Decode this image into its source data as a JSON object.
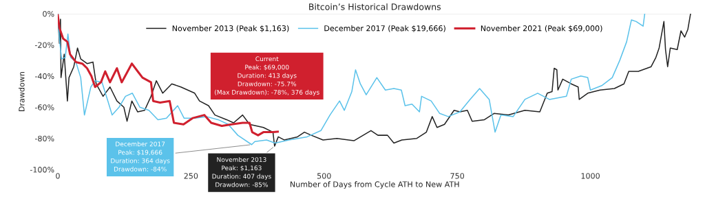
{
  "chart_data": {
    "type": "line",
    "title": "Bitcoin’s Historical Drawdowns",
    "xlabel": "Number of Days from Cycle ATH to New ATH",
    "ylabel": "Drawdown",
    "xlim": [
      0,
      1190
    ],
    "xticks": [
      0,
      250,
      500,
      750,
      1000
    ],
    "ylim": [
      -100,
      0
    ],
    "yticks": [
      {
        "value": 0,
        "label": "0%"
      },
      {
        "value": -20,
        "label": "-20%"
      },
      {
        "value": -40,
        "label": "-40%"
      },
      {
        "value": -60,
        "label": "-60%"
      },
      {
        "value": -80,
        "label": "-80%"
      },
      {
        "value": -100,
        "label": "-100%"
      }
    ],
    "grid": false,
    "legend": "top",
    "marker": "none",
    "line_style": "solid",
    "ref_lines": [
      {
        "axis": "y",
        "value": 0,
        "color": "#dddddd"
      }
    ],
    "series": [
      {
        "name": "November 2013 (Peak $1,163)",
        "color": "#222222",
        "x": [
          0,
          3,
          5,
          6,
          12,
          18,
          21,
          30,
          37,
          43,
          55,
          66,
          72,
          85,
          98,
          111,
          124,
          130,
          139,
          150,
          163,
          175,
          185,
          197,
          214,
          231,
          257,
          266,
          283,
          295,
          317,
          330,
          347,
          360,
          386,
          404,
          407,
          414,
          425,
          450,
          463,
          476,
          498,
          524,
          556,
          588,
          601,
          619,
          631,
          646,
          674,
          692,
          703,
          712,
          726,
          744,
          755,
          769,
          778,
          801,
          819,
          846,
          877,
          905,
          919,
          928,
          932,
          937,
          939,
          948,
          964,
          977,
          979,
          995,
          1018,
          1045,
          1063,
          1072,
          1090,
          1114,
          1123,
          1129,
          1138,
          1141,
          1145,
          1150,
          1163,
          1170,
          1177,
          1183,
          1188
        ],
        "values": [
          0,
          -19,
          -3.5,
          -41,
          -26,
          -56,
          -41,
          -34,
          -22,
          -29,
          -32,
          -31,
          -45,
          -53,
          -47,
          -56,
          -60,
          -69,
          -56,
          -63,
          -62,
          -53,
          -43,
          -51,
          -45,
          -47,
          -51,
          -56,
          -59,
          -65,
          -68,
          -70,
          -65,
          -71,
          -73,
          -76,
          -85,
          -79,
          -81,
          -79,
          -76,
          -78,
          -81,
          -80,
          -81.5,
          -75,
          -78,
          -78,
          -83,
          -81,
          -80,
          -76,
          -66,
          -73,
          -71,
          -62,
          -63,
          -62,
          -69,
          -68,
          -64,
          -65,
          -62,
          -63,
          -51,
          -50,
          -35,
          -36,
          -49,
          -42,
          -45,
          -47,
          -55,
          -51,
          -49,
          -48,
          -45,
          -37,
          -37,
          -34,
          -28,
          -22,
          -5,
          -23,
          -34,
          -22,
          -23,
          -11,
          -15,
          -10,
          0
        ]
      },
      {
        "name": "December 2017 (Peak $19,666)",
        "color": "#5bc2ea",
        "x": [
          0,
          3,
          7,
          14,
          19,
          24,
          34,
          43,
          50,
          62,
          70,
          83,
          94,
          102,
          115,
          127,
          140,
          154,
          171,
          188,
          204,
          225,
          237,
          257,
          279,
          301,
          320,
          338,
          364,
          370,
          392,
          408,
          434,
          468,
          494,
          511,
          529,
          538,
          552,
          559,
          568,
          579,
          599,
          615,
          631,
          645,
          652,
          665,
          679,
          683,
          701,
          717,
          733,
          755,
          774,
          792,
          810,
          821,
          832,
          855,
          877,
          901,
          923,
          955,
          964,
          982,
          995,
          1000,
          1022,
          1041,
          1055,
          1068,
          1077,
          1086,
          1099,
          1102
        ],
        "values": [
          0,
          -16,
          -29,
          -28,
          -13,
          -28,
          -31,
          -41,
          -65,
          -47,
          -43,
          -44,
          -56,
          -65,
          -60,
          -53,
          -51,
          -60,
          -62,
          -68,
          -67,
          -59,
          -67,
          -67,
          -66,
          -68,
          -71,
          -78,
          -84,
          -82,
          -81,
          -83,
          -81,
          -79,
          -75,
          -65,
          -56,
          -62,
          -50,
          -36,
          -45,
          -52,
          -41,
          -49,
          -48,
          -49,
          -59,
          -58,
          -63,
          -53,
          -56,
          -64,
          -66,
          -63,
          -55,
          -48,
          -55,
          -76,
          -65,
          -66,
          -55,
          -51,
          -55,
          -53,
          -42,
          -40,
          -41,
          -49,
          -46,
          -41,
          -30,
          -18,
          -4,
          -5,
          -8,
          0
        ]
      },
      {
        "name": "November 2021 (Peak $69,000)",
        "color": "#d0202e",
        "x": [
          0,
          3,
          10,
          18,
          23,
          34,
          46,
          55,
          63,
          70,
          81,
          89,
          98,
          111,
          120,
          139,
          150,
          159,
          175,
          179,
          192,
          210,
          218,
          236,
          253,
          275,
          288,
          308,
          326,
          347,
          360,
          365,
          376,
          386,
          404,
          413
        ],
        "values": [
          -1,
          -9,
          -16,
          -18,
          -26,
          -31,
          -32,
          -35,
          -40,
          -47,
          -44,
          -37,
          -44,
          -35,
          -44,
          -32,
          -37,
          -41,
          -44,
          -56,
          -57,
          -56,
          -70,
          -71,
          -67,
          -65,
          -70,
          -72,
          -71,
          -70,
          -70,
          -76,
          -78,
          -76,
          -76,
          -75.7
        ]
      }
    ],
    "annotations": [
      "Current\nPeak: $69,000\nDuration: 413 days\nDrawdown: -75.7%\n(Max Drawdown): -78%, 376 days",
      {
        "text": "December 2017\nPeak: $19,666\nDuration: 364 days\nDrawdown: -84%",
        "x": 364,
        "y": -84
      },
      {
        "text": "November 2013\nPeak: $1,163\nDuration: 407 days\nDrawdown: -85%",
        "x": 407,
        "y": -85
      }
    ]
  }
}
